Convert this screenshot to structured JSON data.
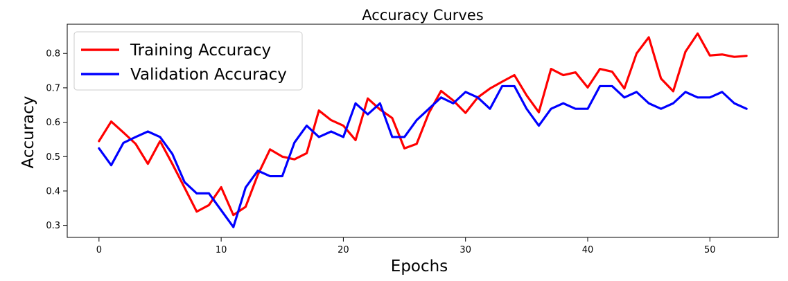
{
  "chart_data": {
    "type": "line",
    "title": "Accuracy Curves",
    "xlabel": "Epochs",
    "ylabel": "Accuracy",
    "xlim": [
      -2.6,
      55.6
    ],
    "ylim": [
      0.265,
      0.885
    ],
    "xticks": [
      0,
      10,
      20,
      30,
      40,
      50
    ],
    "yticks": [
      0.3,
      0.4,
      0.5,
      0.6,
      0.7,
      0.8
    ],
    "grid": false,
    "legend_position": "top-left",
    "x": [
      0,
      1,
      2,
      3,
      4,
      5,
      6,
      7,
      8,
      9,
      10,
      11,
      12,
      13,
      14,
      15,
      16,
      17,
      18,
      19,
      20,
      21,
      22,
      23,
      24,
      25,
      26,
      27,
      28,
      29,
      30,
      31,
      32,
      33,
      34,
      35,
      36,
      37,
      38,
      39,
      40,
      41,
      42,
      43,
      44,
      45,
      46,
      47,
      48,
      49,
      50,
      51,
      52,
      53
    ],
    "series": [
      {
        "name": "Training Accuracy",
        "color": "#ff0000",
        "values": [
          0.545,
          0.602,
          0.57,
          0.537,
          0.479,
          0.545,
          0.479,
          0.41,
          0.34,
          0.359,
          0.411,
          0.33,
          0.354,
          0.447,
          0.521,
          0.5,
          0.492,
          0.51,
          0.634,
          0.606,
          0.59,
          0.548,
          0.669,
          0.637,
          0.612,
          0.524,
          0.537,
          0.627,
          0.691,
          0.663,
          0.627,
          0.672,
          0.698,
          0.718,
          0.737,
          0.678,
          0.629,
          0.755,
          0.737,
          0.745,
          0.701,
          0.755,
          0.747,
          0.698,
          0.8,
          0.847,
          0.727,
          0.69,
          0.805,
          0.858,
          0.794,
          0.797,
          0.79,
          0.793
        ]
      },
      {
        "name": "Validation Accuracy",
        "color": "#0000ff",
        "values": [
          0.524,
          0.475,
          0.54,
          0.557,
          0.573,
          0.557,
          0.508,
          0.426,
          0.393,
          0.393,
          0.344,
          0.295,
          0.41,
          0.459,
          0.443,
          0.443,
          0.541,
          0.59,
          0.557,
          0.573,
          0.557,
          0.655,
          0.623,
          0.655,
          0.557,
          0.557,
          0.606,
          0.639,
          0.672,
          0.655,
          0.688,
          0.672,
          0.639,
          0.705,
          0.705,
          0.639,
          0.59,
          0.639,
          0.655,
          0.639,
          0.639,
          0.705,
          0.705,
          0.672,
          0.688,
          0.655,
          0.639,
          0.655,
          0.688,
          0.672,
          0.672,
          0.688,
          0.655,
          0.639
        ]
      }
    ]
  }
}
